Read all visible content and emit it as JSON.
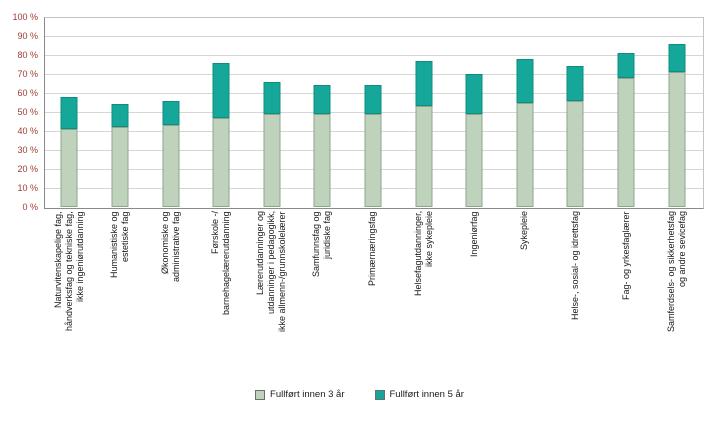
{
  "chart_data": {
    "type": "bar",
    "stacked": true,
    "orientation": "vertical",
    "title": "",
    "xlabel": "",
    "ylabel": "",
    "categories": [
      [
        "Naturvitenskapelige fag,",
        "håndverksfag og tekniske fag,",
        "ikke ingeniørutdanning"
      ],
      [
        "Humanistiske og",
        "estetiske fag"
      ],
      [
        "Økonomiske og",
        "administrative fag"
      ],
      [
        "Førskole -/",
        "barnehagelærerutdanning"
      ],
      [
        "Lærerutdanninger og",
        "utdanninger i pedagogikk,",
        "ikke allmenn-/grunnskolelærer"
      ],
      [
        "Samfunnsfag og",
        "juridiske fag"
      ],
      [
        "Primærnæringsfag"
      ],
      [
        "Helsefagutdanninger,",
        "ikke sykepleie"
      ],
      [
        "Ingeniørfag"
      ],
      [
        "Sykepleie"
      ],
      [
        "Helse-, sosial- og idrettsfag"
      ],
      [
        "Fag- og yrkesfaglærer"
      ],
      [
        "Samferdsels- og sikkerhetsfag",
        "og andre sevicefag"
      ]
    ],
    "series": [
      {
        "name": "Fullført innen 3 år",
        "color": "#bfd2bb",
        "border": "#8fa68c",
        "values": [
          41,
          42,
          43,
          47,
          49,
          49,
          49,
          53,
          49,
          55,
          56,
          68,
          71
        ]
      },
      {
        "name": "Fullført innen 5 år",
        "color": "#16a79b",
        "border": "#0e8c82",
        "values": [
          17,
          12,
          13,
          29,
          17,
          15,
          15,
          24,
          21,
          23,
          18,
          13,
          15
        ]
      }
    ],
    "totals_within_5yr": [
      58,
      54,
      56,
      76,
      66,
      64,
      64,
      77,
      70,
      78,
      74,
      81,
      86
    ],
    "ylim": [
      0,
      100
    ],
    "yticks": [
      "0 %",
      "10 %",
      "20 %",
      "30 %",
      "40 %",
      "50 %",
      "60 %",
      "70 %",
      "80 %",
      "90 %",
      "100 %"
    ],
    "grid": true,
    "legend_position": "bottom"
  },
  "style": {
    "ytick_color": "#9e3b32",
    "xtick_color": "#1a1a1a",
    "grid_color": "#d6d6d6",
    "axis_color": "#8a8a8a",
    "legend_text_color": "#1a1a1a"
  }
}
